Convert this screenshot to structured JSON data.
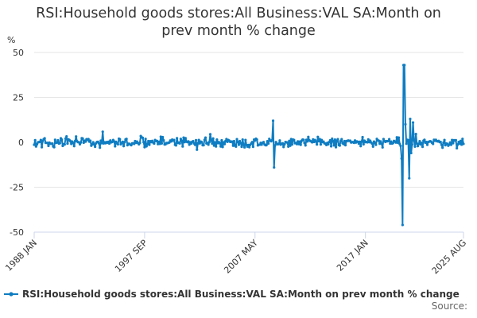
{
  "chart_data": {
    "type": "line",
    "title": "RSI:Household goods stores:All Business:VAL SA:Month on prev month % change",
    "title_lines": [
      "RSI:Household goods stores:All Business:VAL SA:Month on",
      "prev month % change"
    ],
    "ylabel": "%",
    "xlabel": "",
    "ylim": [
      -50,
      50
    ],
    "yticks": [
      50,
      25,
      0,
      -25,
      -50
    ],
    "ytick_labels": [
      "50",
      "25",
      "0",
      "-25",
      "-50"
    ],
    "x_start": "1988 JAN",
    "x_end": "2025 AUG",
    "xtick_labels": [
      "1988 JAN",
      "1997 SEP",
      "2007 MAY",
      "2017 JAN",
      "2025 AUG"
    ],
    "grid": true,
    "series": [
      {
        "name": "RSI:Household goods stores:All Business:VAL SA:Month on prev month % change",
        "color": "#0f7dc2",
        "notable_points": [
          {
            "date": "2008 DEC",
            "value": 12
          },
          {
            "date": "2009 JAN",
            "value": -14
          },
          {
            "date": "2020 MAR",
            "value": -9
          },
          {
            "date": "2020 APR",
            "value": -46
          },
          {
            "date": "2020 MAY",
            "value": 43
          },
          {
            "date": "2020 JUN",
            "value": 43
          },
          {
            "date": "2020 JUL",
            "value": 10
          },
          {
            "date": "2020 NOV",
            "value": -20
          },
          {
            "date": "2020 DEC",
            "value": 13
          },
          {
            "date": "2021 JAN",
            "value": -6
          },
          {
            "date": "2021 MAR",
            "value": 11
          }
        ],
        "typical_range": [
          -5,
          7
        ]
      }
    ]
  },
  "legend": {
    "label": "RSI:Household goods stores:All Business:VAL SA:Month on prev month % change"
  },
  "source": {
    "label": "Source:"
  }
}
